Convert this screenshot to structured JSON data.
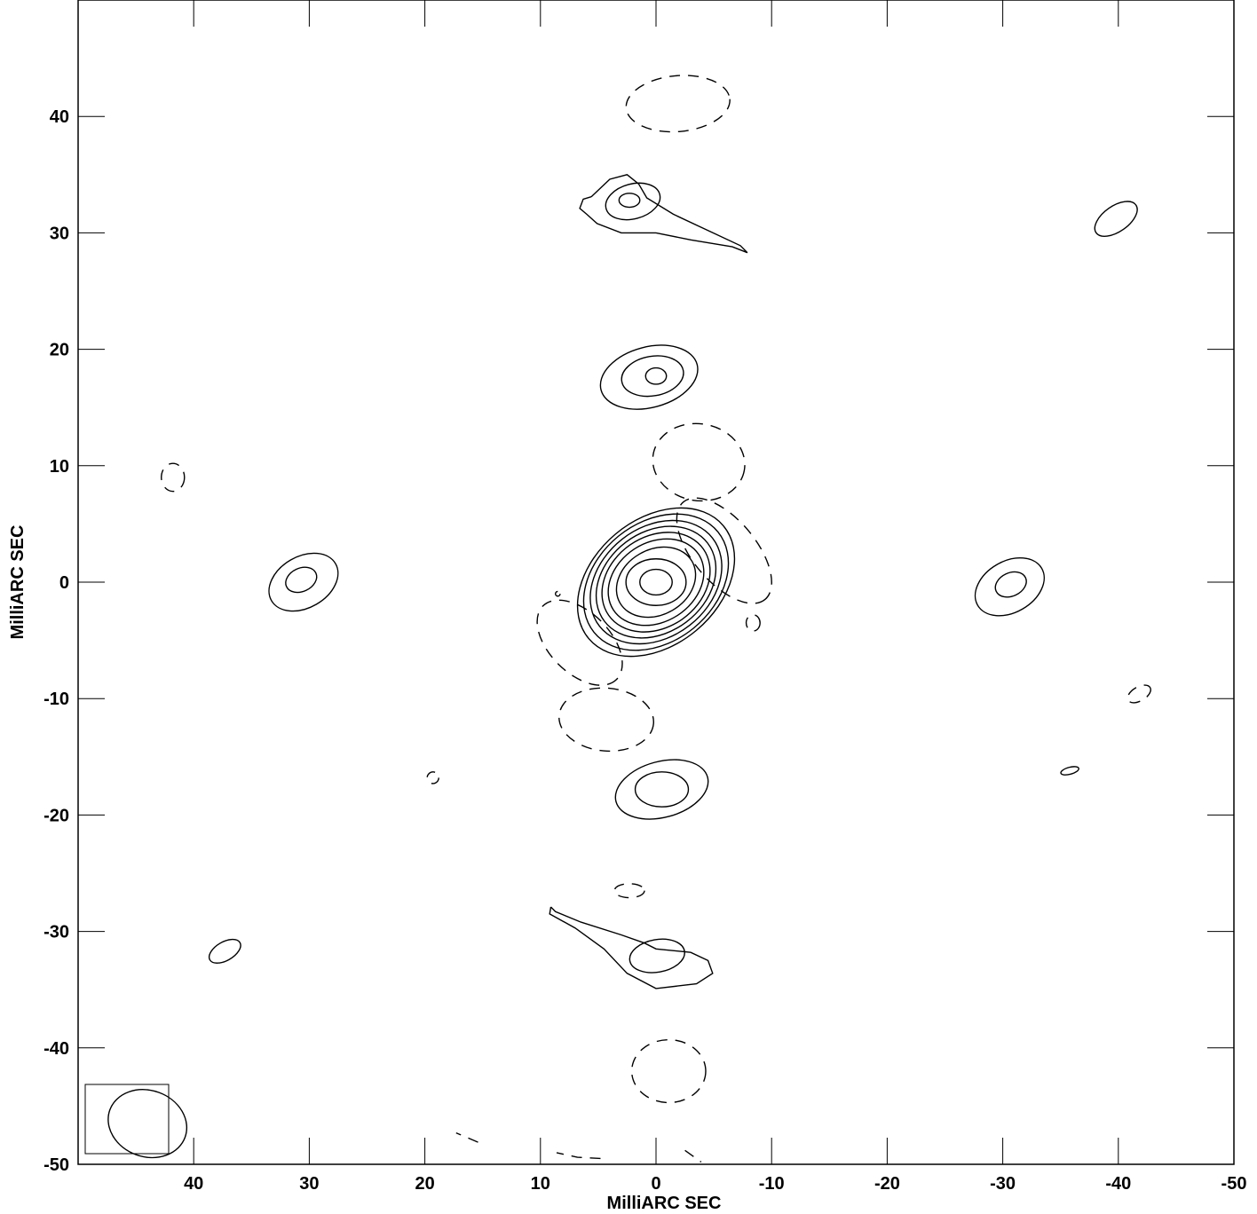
{
  "chart_data": {
    "type": "contour",
    "title": "",
    "xlabel": "MilliARC SEC",
    "ylabel": "MilliARC SEC",
    "xlim": [
      50,
      -50
    ],
    "ylim": [
      -50,
      50
    ],
    "x_ticks": [
      40,
      30,
      20,
      10,
      0,
      -10,
      -20,
      -30,
      -40,
      -50
    ],
    "y_ticks": [
      40,
      30,
      20,
      10,
      0,
      -10,
      -20,
      -30,
      -40,
      -50
    ],
    "x_tick_labels": [
      "40",
      "30",
      "20",
      "10",
      "0",
      "-10",
      "-20",
      "-30",
      "-40",
      "-50"
    ],
    "y_tick_labels": [
      "40",
      "30",
      "20",
      "10",
      "0",
      "-10",
      "-20",
      "-30",
      "-40",
      "-50"
    ],
    "grid": false,
    "beam": {
      "x": 44,
      "y": -46.5,
      "major_mas": 4.5,
      "minor_mas": 3.7,
      "pa_deg": 20
    },
    "contours": [
      {
        "x": 0,
        "y": 0,
        "rx": 1.4,
        "ry": 1.1,
        "rot": 0,
        "neg": false
      },
      {
        "x": 0,
        "y": 0,
        "rx": 2.6,
        "ry": 2.0,
        "rot": 0,
        "neg": false
      },
      {
        "x": 0,
        "y": 0,
        "rx": 3.6,
        "ry": 2.8,
        "rot": -30,
        "neg": false
      },
      {
        "x": 0,
        "y": 0,
        "rx": 4.4,
        "ry": 3.4,
        "rot": -33,
        "neg": false
      },
      {
        "x": 0,
        "y": 0,
        "rx": 5.0,
        "ry": 3.9,
        "rot": -35,
        "neg": false
      },
      {
        "x": 0,
        "y": 0,
        "rx": 5.6,
        "ry": 4.3,
        "rot": -37,
        "neg": false
      },
      {
        "x": 0,
        "y": 0,
        "rx": 6.2,
        "ry": 4.7,
        "rot": -38,
        "neg": false
      },
      {
        "x": 0,
        "y": 0,
        "rx": 6.9,
        "ry": 5.1,
        "rot": -39,
        "neg": false
      },
      {
        "x": 0,
        "y": 0,
        "rx": 7.6,
        "ry": 5.4,
        "rot": -40,
        "neg": false
      },
      {
        "x": 0,
        "y": 17.7,
        "rx": 0.9,
        "ry": 0.7,
        "rot": 0,
        "neg": false
      },
      {
        "x": 0.3,
        "y": 17.7,
        "rx": 2.7,
        "ry": 1.7,
        "rot": -10,
        "neg": false
      },
      {
        "x": 0.6,
        "y": 17.6,
        "rx": 4.3,
        "ry": 2.6,
        "rot": -15,
        "neg": false
      },
      {
        "x": 2.3,
        "y": 32.8,
        "rx": 0.9,
        "ry": 0.6,
        "rot": 0,
        "neg": false
      },
      {
        "x": 2.0,
        "y": 32.7,
        "rx": 2.4,
        "ry": 1.5,
        "rot": -15,
        "neg": false
      },
      {
        "x": -0.5,
        "y": -17.8,
        "rx": 2.3,
        "ry": 1.5,
        "rot": 0,
        "neg": false
      },
      {
        "x": -0.5,
        "y": -17.8,
        "rx": 4.1,
        "ry": 2.4,
        "rot": -15,
        "neg": false
      },
      {
        "x": -0.1,
        "y": -32.1,
        "rx": 2.4,
        "ry": 1.4,
        "rot": -10,
        "neg": false
      },
      {
        "x": 30.7,
        "y": 0.2,
        "rx": 1.4,
        "ry": 1.0,
        "rot": -25,
        "neg": false
      },
      {
        "x": 30.5,
        "y": 0.0,
        "rx": 3.2,
        "ry": 2.2,
        "rot": -30,
        "neg": false
      },
      {
        "x": -30.7,
        "y": -0.2,
        "rx": 1.4,
        "ry": 1.0,
        "rot": -25,
        "neg": false
      },
      {
        "x": -30.6,
        "y": -0.4,
        "rx": 3.2,
        "ry": 2.2,
        "rot": -30,
        "neg": false
      },
      {
        "x": -39.8,
        "y": 31.2,
        "rx": 2.1,
        "ry": 1.1,
        "rot": -35,
        "neg": false
      },
      {
        "x": 37.3,
        "y": -31.7,
        "rx": 1.5,
        "ry": 0.8,
        "rot": -30,
        "neg": false
      },
      {
        "x": -35.8,
        "y": -16.2,
        "rx": 0.8,
        "ry": 0.3,
        "rot": -15,
        "neg": false
      },
      {
        "x": -1.9,
        "y": 41.1,
        "rx": 4.5,
        "ry": 2.4,
        "rot": -5,
        "neg": true
      },
      {
        "x": -3.7,
        "y": 10.3,
        "rx": 4.0,
        "ry": 3.3,
        "rot": 10,
        "neg": true
      },
      {
        "x": -5.9,
        "y": 2.7,
        "rx": 5.5,
        "ry": 2.7,
        "rot": 50,
        "neg": true
      },
      {
        "x": 6.6,
        "y": -5.2,
        "rx": 4.5,
        "ry": 2.6,
        "rot": 45,
        "neg": true
      },
      {
        "x": 4.3,
        "y": -11.8,
        "rx": 4.1,
        "ry": 2.7,
        "rot": 5,
        "neg": true
      },
      {
        "x": -1.1,
        "y": -42.0,
        "rx": 3.2,
        "ry": 2.7,
        "rot": 0,
        "neg": true
      },
      {
        "x": 41.8,
        "y": 9.0,
        "rx": 1.0,
        "ry": 1.2,
        "rot": 0,
        "neg": true
      },
      {
        "x": 19.3,
        "y": -16.8,
        "rx": 0.5,
        "ry": 0.5,
        "rot": 0,
        "neg": true
      },
      {
        "x": 2.3,
        "y": -26.5,
        "rx": 1.3,
        "ry": 0.6,
        "rot": 0,
        "neg": true
      },
      {
        "x": -41.8,
        "y": -9.6,
        "rx": 1.1,
        "ry": 0.6,
        "rot": -30,
        "neg": true
      },
      {
        "x": 8.5,
        "y": -1.0,
        "rx": 0.2,
        "ry": 0.2,
        "rot": 0,
        "neg": true
      },
      {
        "x": -8.4,
        "y": -3.5,
        "rx": 0.6,
        "ry": 0.7,
        "rot": 0,
        "neg": true
      }
    ],
    "partial_contours": [
      {
        "points": [
          [
            5.6,
            33.1
          ],
          [
            6.3,
            32.9
          ],
          [
            6.6,
            32.1
          ],
          [
            6.0,
            31.6
          ],
          [
            5.1,
            30.8
          ],
          [
            3.0,
            30.0
          ],
          [
            0.0,
            30.0
          ],
          [
            -3.0,
            29.4
          ],
          [
            -6.6,
            28.8
          ],
          [
            -7.9,
            28.3
          ],
          [
            -7.3,
            28.9
          ],
          [
            -4.5,
            30.2
          ],
          [
            -1.5,
            31.6
          ],
          [
            0.8,
            33.0
          ],
          [
            1.5,
            34.2
          ],
          [
            2.5,
            35.0
          ],
          [
            4.0,
            34.6
          ],
          [
            5.6,
            33.1
          ]
        ],
        "neg": false
      },
      {
        "points": [
          [
            9.1,
            -27.9
          ],
          [
            8.7,
            -28.3
          ],
          [
            6.5,
            -29.2
          ],
          [
            3.0,
            -30.3
          ],
          [
            1.0,
            -31.0
          ],
          [
            0.0,
            -31.5
          ],
          [
            -3.0,
            -31.8
          ],
          [
            -4.5,
            -32.5
          ],
          [
            -4.9,
            -33.6
          ],
          [
            -3.5,
            -34.5
          ],
          [
            0.0,
            -34.9
          ],
          [
            2.5,
            -33.6
          ],
          [
            4.5,
            -31.5
          ],
          [
            7.0,
            -29.7
          ],
          [
            9.2,
            -28.5
          ],
          [
            9.1,
            -27.9
          ]
        ],
        "neg": false
      },
      {
        "points": [
          [
            15.4,
            -48.1
          ],
          [
            17.3,
            -47.3
          ]
        ],
        "neg": true
      },
      {
        "points": [
          [
            4.8,
            -49.5
          ],
          [
            6.8,
            -49.4
          ],
          [
            8.6,
            -49.0
          ]
        ],
        "neg": true
      },
      {
        "points": [
          [
            -2.5,
            -48.8
          ],
          [
            -3.9,
            -49.8
          ]
        ],
        "neg": true
      }
    ]
  }
}
